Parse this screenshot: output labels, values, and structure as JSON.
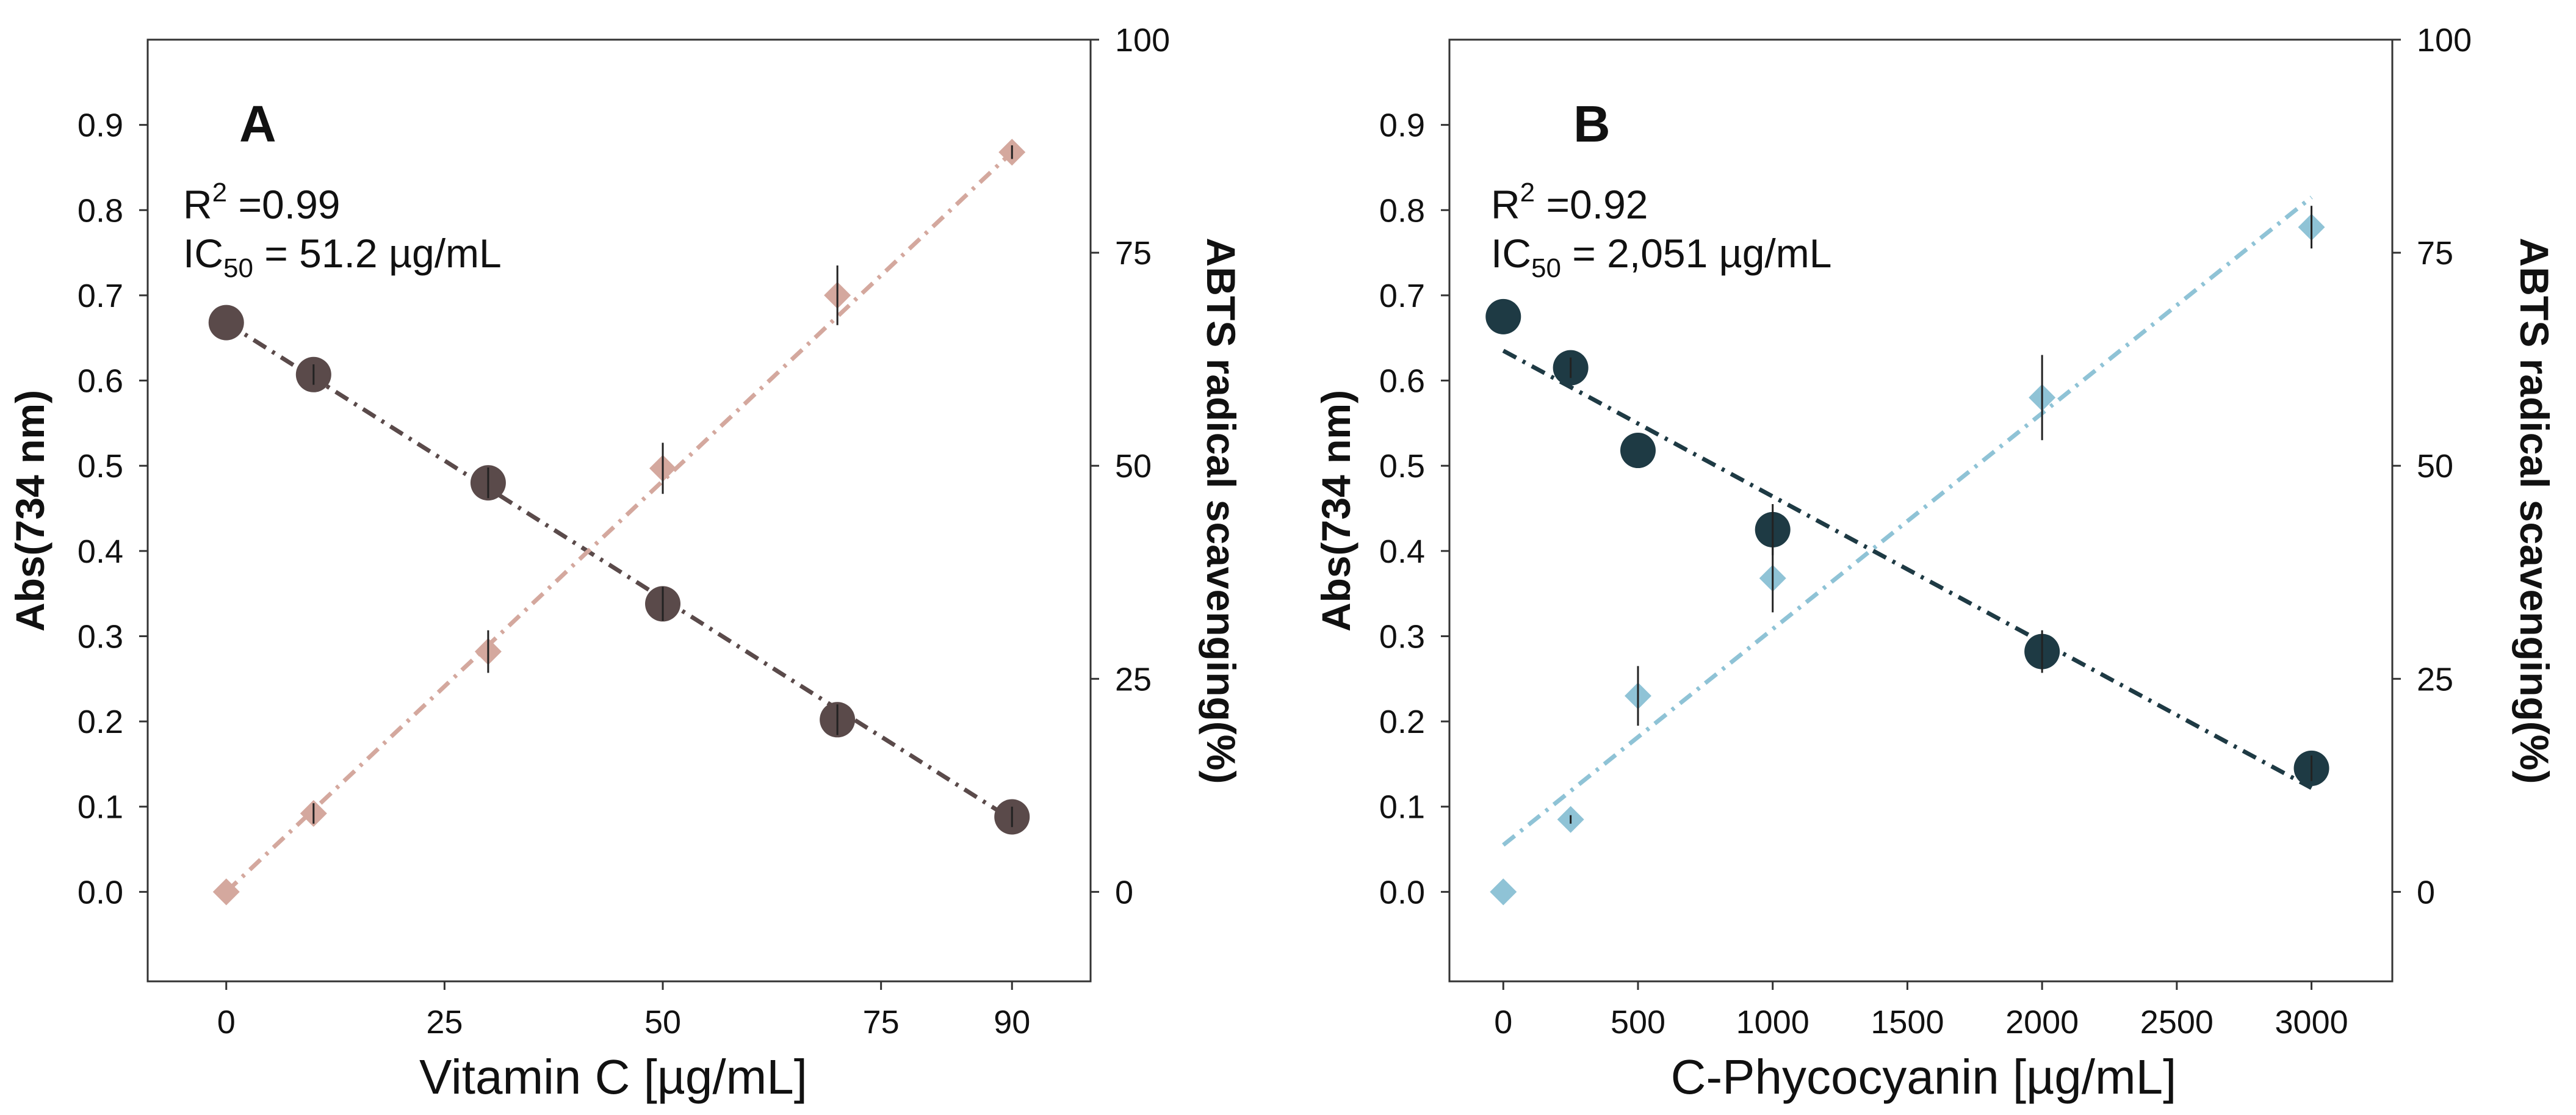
{
  "chart_data": [
    {
      "type": "scatter",
      "panel_label": "A",
      "xlabel": "Vitamin C [µg/mL]",
      "ylabel_left": "Abs(734 nm)",
      "ylabel_right": "ABTS radical scavenging(%)",
      "xlim": [
        -9,
        99
      ],
      "ylim_left": [
        -0.105,
        1.0
      ],
      "ylim_right": [
        -10.5,
        100
      ],
      "x_ticks": [
        0,
        25,
        50,
        75,
        90
      ],
      "x_tick_labels": [
        "0",
        "25",
        "50",
        "75",
        "90"
      ],
      "y_ticks_left": [
        0.0,
        0.1,
        0.2,
        0.3,
        0.4,
        0.5,
        0.6,
        0.7,
        0.8,
        0.9
      ],
      "y_tick_labels_left": [
        "0.0",
        "0.1",
        "0.2",
        "0.3",
        "0.4",
        "0.5",
        "0.6",
        "0.7",
        "0.8",
        "0.9"
      ],
      "y_ticks_right": [
        0,
        25,
        50,
        75,
        100
      ],
      "y_tick_labels_right": [
        "0",
        "25",
        "50",
        "75",
        "100"
      ],
      "annotations": {
        "r2_prefix": "R",
        "r2_exp": "2",
        "r2_value": " =0.99",
        "ic_prefix": "IC",
        "ic_sub": "50",
        "ic_value": " = 51.2 µg/mL"
      },
      "series": [
        {
          "name": "Abs(734 nm)",
          "axis": "left",
          "marker": "circle",
          "color": "#5a4a4a",
          "x": [
            0,
            10,
            30,
            50,
            70,
            90
          ],
          "y": [
            0.668,
            0.607,
            0.48,
            0.338,
            0.202,
            0.088
          ],
          "err": [
            0.0,
            0.012,
            0.018,
            0.02,
            0.018,
            0.012
          ],
          "fit_line": [
            [
              0,
              0.668
            ],
            [
              90,
              0.085
            ]
          ]
        },
        {
          "name": "ABTS radical scavenging(%)",
          "axis": "right",
          "marker": "diamond",
          "color": "#d4a89e",
          "x": [
            0,
            10,
            30,
            50,
            70,
            90
          ],
          "y": [
            0.0,
            9.2,
            28.2,
            49.7,
            70.0,
            86.8
          ],
          "err": [
            0.0,
            1.2,
            2.5,
            3.0,
            3.5,
            0.8
          ],
          "fit_line": [
            [
              0,
              0.0
            ],
            [
              90,
              86.8
            ]
          ]
        }
      ]
    },
    {
      "type": "scatter",
      "panel_label": "B",
      "xlabel": "C-Phycocyanin [µg/mL]",
      "ylabel_left": "Abs(734 nm)",
      "ylabel_right": "ABTS radical scavenging(%)",
      "xlim": [
        -200,
        3300
      ],
      "ylim_left": [
        -0.105,
        1.0
      ],
      "ylim_right": [
        -10.5,
        100
      ],
      "x_ticks": [
        0,
        500,
        1000,
        1500,
        2000,
        2500,
        3000
      ],
      "x_tick_labels": [
        "0",
        "500",
        "1000",
        "1500",
        "2000",
        "2500",
        "3000"
      ],
      "y_ticks_left": [
        0.0,
        0.1,
        0.2,
        0.3,
        0.4,
        0.5,
        0.6,
        0.7,
        0.8,
        0.9
      ],
      "y_tick_labels_left": [
        "0.0",
        "0.1",
        "0.2",
        "0.3",
        "0.4",
        "0.5",
        "0.6",
        "0.7",
        "0.8",
        "0.9"
      ],
      "y_ticks_right": [
        0,
        25,
        50,
        75,
        100
      ],
      "y_tick_labels_right": [
        "0",
        "25",
        "50",
        "75",
        "100"
      ],
      "annotations": {
        "r2_prefix": "R",
        "r2_exp": "2",
        "r2_value": " =0.92",
        "ic_prefix": "IC",
        "ic_sub": "50",
        "ic_value": " = 2,051 µg/mL"
      },
      "series": [
        {
          "name": "Abs(734 nm)",
          "axis": "left",
          "marker": "circle",
          "color": "#1e3a44",
          "x": [
            0,
            250,
            500,
            1000,
            2000,
            3000
          ],
          "y": [
            0.675,
            0.615,
            0.518,
            0.425,
            0.282,
            0.145
          ],
          "err": [
            0.0,
            0.012,
            0.0,
            0.03,
            0.025,
            0.015
          ],
          "fit_line": [
            [
              0,
              0.635
            ],
            [
              3000,
              0.122
            ]
          ]
        },
        {
          "name": "ABTS radical scavenging(%)",
          "axis": "right",
          "marker": "diamond",
          "color": "#8fc3d6",
          "x": [
            0,
            250,
            500,
            1000,
            2000,
            3000
          ],
          "y": [
            0.0,
            8.5,
            23.0,
            36.8,
            58.0,
            78.0
          ],
          "err": [
            0.0,
            0.5,
            3.5,
            4.0,
            5.0,
            2.5
          ],
          "fit_line": [
            [
              0,
              5.5
            ],
            [
              3000,
              81.5
            ]
          ]
        }
      ]
    }
  ]
}
